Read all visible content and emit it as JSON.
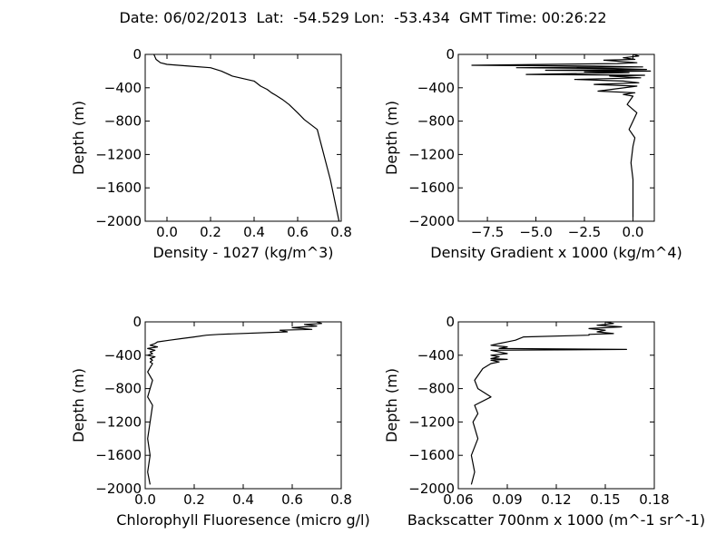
{
  "suptitle": "Date: 06/02/2013  Lat:  -54.529 Lon:  -53.434  GMT Time: 00:26:22",
  "chart_data": [
    {
      "type": "line",
      "xlabel": "Density - 1027 (kg/m^3)",
      "ylabel": "Depth (m)",
      "xlim": [
        -0.1,
        0.8
      ],
      "ylim": [
        -2000,
        0
      ],
      "xticks": [
        0.0,
        0.2,
        0.4,
        0.6,
        0.8
      ],
      "xtick_labels": [
        "0.0",
        "0.2",
        "0.4",
        "0.6",
        "0.8"
      ],
      "yticks": [
        0,
        -400,
        -800,
        -1200,
        -1600,
        -2000
      ],
      "ytick_labels": [
        "0",
        "−400",
        "−800",
        "−1200",
        "−1600",
        "−2000"
      ],
      "grid": false,
      "series": [
        {
          "x": [
            -0.06,
            -0.055,
            -0.05,
            -0.03,
            0.0,
            0.1,
            0.2,
            0.25,
            0.3,
            0.35,
            0.4,
            0.43,
            0.46,
            0.48,
            0.5,
            0.53,
            0.56,
            0.6,
            0.63,
            0.66,
            0.69,
            0.7,
            0.71,
            0.73,
            0.75,
            0.77,
            0.79
          ],
          "y": [
            0,
            -30,
            -60,
            -100,
            -120,
            -140,
            -160,
            -200,
            -260,
            -290,
            -320,
            -380,
            -420,
            -460,
            -490,
            -540,
            -600,
            -700,
            -780,
            -840,
            -900,
            -1000,
            -1100,
            -1300,
            -1500,
            -1750,
            -2000
          ]
        }
      ]
    },
    {
      "type": "line",
      "xlabel": "Density Gradient x 1000 (kg/m^4)",
      "ylabel": "Depth (m)",
      "xlim": [
        -9,
        1.1
      ],
      "ylim": [
        -2000,
        0
      ],
      "xticks": [
        -7.5,
        -5.0,
        -2.5,
        0.0
      ],
      "xtick_labels": [
        "−7.5",
        "−5.0",
        "−2.5",
        "0.0"
      ],
      "yticks": [
        0,
        -400,
        -800,
        -1200,
        -1600,
        -2000
      ],
      "ytick_labels": [
        "0",
        "−400",
        "−800",
        "−1200",
        "−1600",
        "−2000"
      ],
      "grid": false,
      "series": [
        {
          "x": [
            0.0,
            0.3,
            -0.5,
            0.1,
            -1.5,
            -0.3,
            0.2,
            -0.8,
            -8.3,
            -2.0,
            0.5,
            -6.0,
            -1.0,
            0.7,
            -4.5,
            0.9,
            -2.5,
            -0.2,
            -5.5,
            0.6,
            -1.2,
            0.4,
            -3.0,
            -0.5,
            0.3,
            -2.0,
            0.2,
            -1.8,
            0.1,
            -0.5,
            0.0,
            -0.3,
            0.2,
            0.0,
            -0.2,
            0.1,
            0.0,
            -0.1,
            0.0,
            0.0,
            0.0
          ],
          "y": [
            0,
            -20,
            -40,
            -60,
            -70,
            -90,
            -100,
            -110,
            -130,
            -140,
            -150,
            -160,
            -170,
            -180,
            -190,
            -200,
            -210,
            -220,
            -240,
            -250,
            -260,
            -280,
            -300,
            -320,
            -340,
            -360,
            -380,
            -440,
            -460,
            -480,
            -500,
            -600,
            -700,
            -800,
            -900,
            -1000,
            -1100,
            -1300,
            -1500,
            -1700,
            -1950
          ]
        }
      ]
    },
    {
      "type": "line",
      "xlabel": "Chlorophyll Fluoresence (micro g/l)",
      "ylabel": "Depth (m)",
      "xlim": [
        0.0,
        0.8
      ],
      "ylim": [
        -2000,
        0
      ],
      "xticks": [
        0.0,
        0.2,
        0.4,
        0.6,
        0.8
      ],
      "xtick_labels": [
        "0.0",
        "0.2",
        "0.4",
        "0.6",
        "0.8"
      ],
      "yticks": [
        0,
        -400,
        -800,
        -1200,
        -1600,
        -2000
      ],
      "ytick_labels": [
        "0",
        "−400",
        "−800",
        "−1200",
        "−1600",
        "−2000"
      ],
      "grid": false,
      "series": [
        {
          "x": [
            0.7,
            0.72,
            0.65,
            0.7,
            0.6,
            0.68,
            0.55,
            0.58,
            0.3,
            0.25,
            0.2,
            0.15,
            0.1,
            0.05,
            0.04,
            0.02,
            0.05,
            0.01,
            0.04,
            0.02,
            0.03,
            0.01,
            0.04,
            0.02,
            0.03,
            0.02,
            0.03,
            0.02,
            0.01,
            0.03,
            0.02,
            0.01,
            0.03,
            0.02,
            0.01,
            0.02,
            0.01,
            0.02
          ],
          "y": [
            0,
            -20,
            -30,
            -50,
            -70,
            -90,
            -100,
            -120,
            -150,
            -160,
            -180,
            -200,
            -220,
            -240,
            -260,
            -280,
            -300,
            -320,
            -340,
            -360,
            -380,
            -400,
            -420,
            -440,
            -460,
            -480,
            -500,
            -550,
            -600,
            -700,
            -800,
            -900,
            -1000,
            -1200,
            -1400,
            -1600,
            -1800,
            -1950
          ]
        }
      ]
    },
    {
      "type": "line",
      "xlabel": "Backscatter 700nm x 1000 (m^-1 sr^-1)",
      "ylabel": "Depth (m)",
      "xlim": [
        0.06,
        0.18
      ],
      "ylim": [
        -2000,
        0
      ],
      "xticks": [
        0.06,
        0.09,
        0.12,
        0.15,
        0.18
      ],
      "xtick_labels": [
        "0.06",
        "0.09",
        "0.12",
        "0.15",
        "0.18"
      ],
      "yticks": [
        0,
        -400,
        -800,
        -1200,
        -1600,
        -2000
      ],
      "ytick_labels": [
        "0",
        "−400",
        "−800",
        "−1200",
        "−1600",
        "−2000"
      ],
      "grid": false,
      "series": [
        {
          "x": [
            0.15,
            0.155,
            0.145,
            0.16,
            0.14,
            0.15,
            0.145,
            0.155,
            0.14,
            0.14,
            0.1,
            0.095,
            0.09,
            0.085,
            0.08,
            0.09,
            0.085,
            0.163,
            0.08,
            0.09,
            0.08,
            0.085,
            0.08,
            0.09,
            0.08,
            0.085,
            0.08,
            0.075,
            0.07,
            0.072,
            0.08,
            0.07,
            0.072,
            0.069,
            0.072,
            0.068,
            0.07,
            0.068
          ],
          "y": [
            0,
            -20,
            -40,
            -60,
            -80,
            -100,
            -120,
            -140,
            -150,
            -160,
            -180,
            -220,
            -240,
            -260,
            -280,
            -300,
            -320,
            -330,
            -340,
            -380,
            -400,
            -420,
            -440,
            -450,
            -460,
            -480,
            -500,
            -560,
            -700,
            -800,
            -900,
            -1000,
            -1100,
            -1200,
            -1400,
            -1600,
            -1800,
            -1950
          ]
        }
      ]
    }
  ]
}
